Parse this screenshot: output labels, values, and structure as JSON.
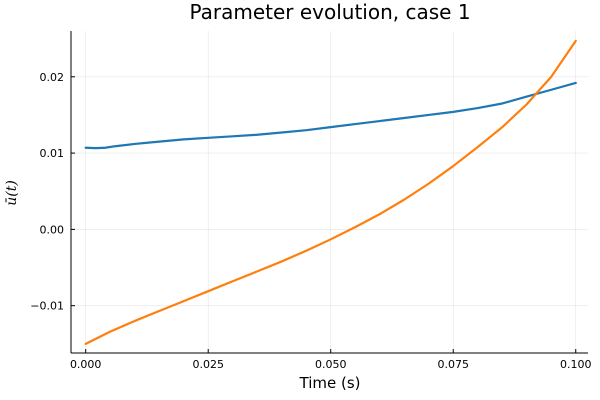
{
  "chart_data": {
    "type": "line",
    "title": "Parameter evolution, case 1",
    "xlabel": "Time (s)",
    "ylabel": "ū(t)",
    "xlim": [
      -0.003,
      0.1025
    ],
    "ylim": [
      -0.0162,
      0.026
    ],
    "xticks": [
      0.0,
      0.025,
      0.05,
      0.075,
      0.1
    ],
    "xtick_labels": [
      "0.000",
      "0.025",
      "0.050",
      "0.075",
      "0.100"
    ],
    "yticks": [
      -0.01,
      0.0,
      0.01,
      0.02
    ],
    "ytick_labels": [
      "-0.01",
      "0.00",
      "0.01",
      "0.02"
    ],
    "grid": true,
    "legend": "none",
    "series": [
      {
        "color": "#1f77b4",
        "x": [
          0.0,
          0.002,
          0.004,
          0.006,
          0.01,
          0.015,
          0.02,
          0.025,
          0.03,
          0.035,
          0.04,
          0.045,
          0.05,
          0.055,
          0.06,
          0.065,
          0.07,
          0.075,
          0.08,
          0.085,
          0.09,
          0.095,
          0.1
        ],
        "values": [
          0.0107,
          0.01065,
          0.0107,
          0.0109,
          0.0112,
          0.0115,
          0.0118,
          0.012,
          0.0122,
          0.0124,
          0.0127,
          0.013,
          0.0134,
          0.0138,
          0.0142,
          0.0146,
          0.015,
          0.0154,
          0.0159,
          0.0165,
          0.0174,
          0.0183,
          0.0192
        ]
      },
      {
        "color": "#ff7f0e",
        "x": [
          0.0,
          0.005,
          0.01,
          0.015,
          0.02,
          0.025,
          0.03,
          0.035,
          0.04,
          0.045,
          0.05,
          0.055,
          0.06,
          0.065,
          0.07,
          0.075,
          0.08,
          0.085,
          0.09,
          0.095,
          0.1
        ],
        "values": [
          -0.015,
          -0.0134,
          -0.012,
          -0.0107,
          -0.0094,
          -0.0081,
          -0.0068,
          -0.0055,
          -0.0042,
          -0.0028,
          -0.0013,
          0.0003,
          0.002,
          0.0039,
          0.006,
          0.0083,
          0.0108,
          0.0134,
          0.0164,
          0.02,
          0.0247
        ]
      }
    ]
  }
}
